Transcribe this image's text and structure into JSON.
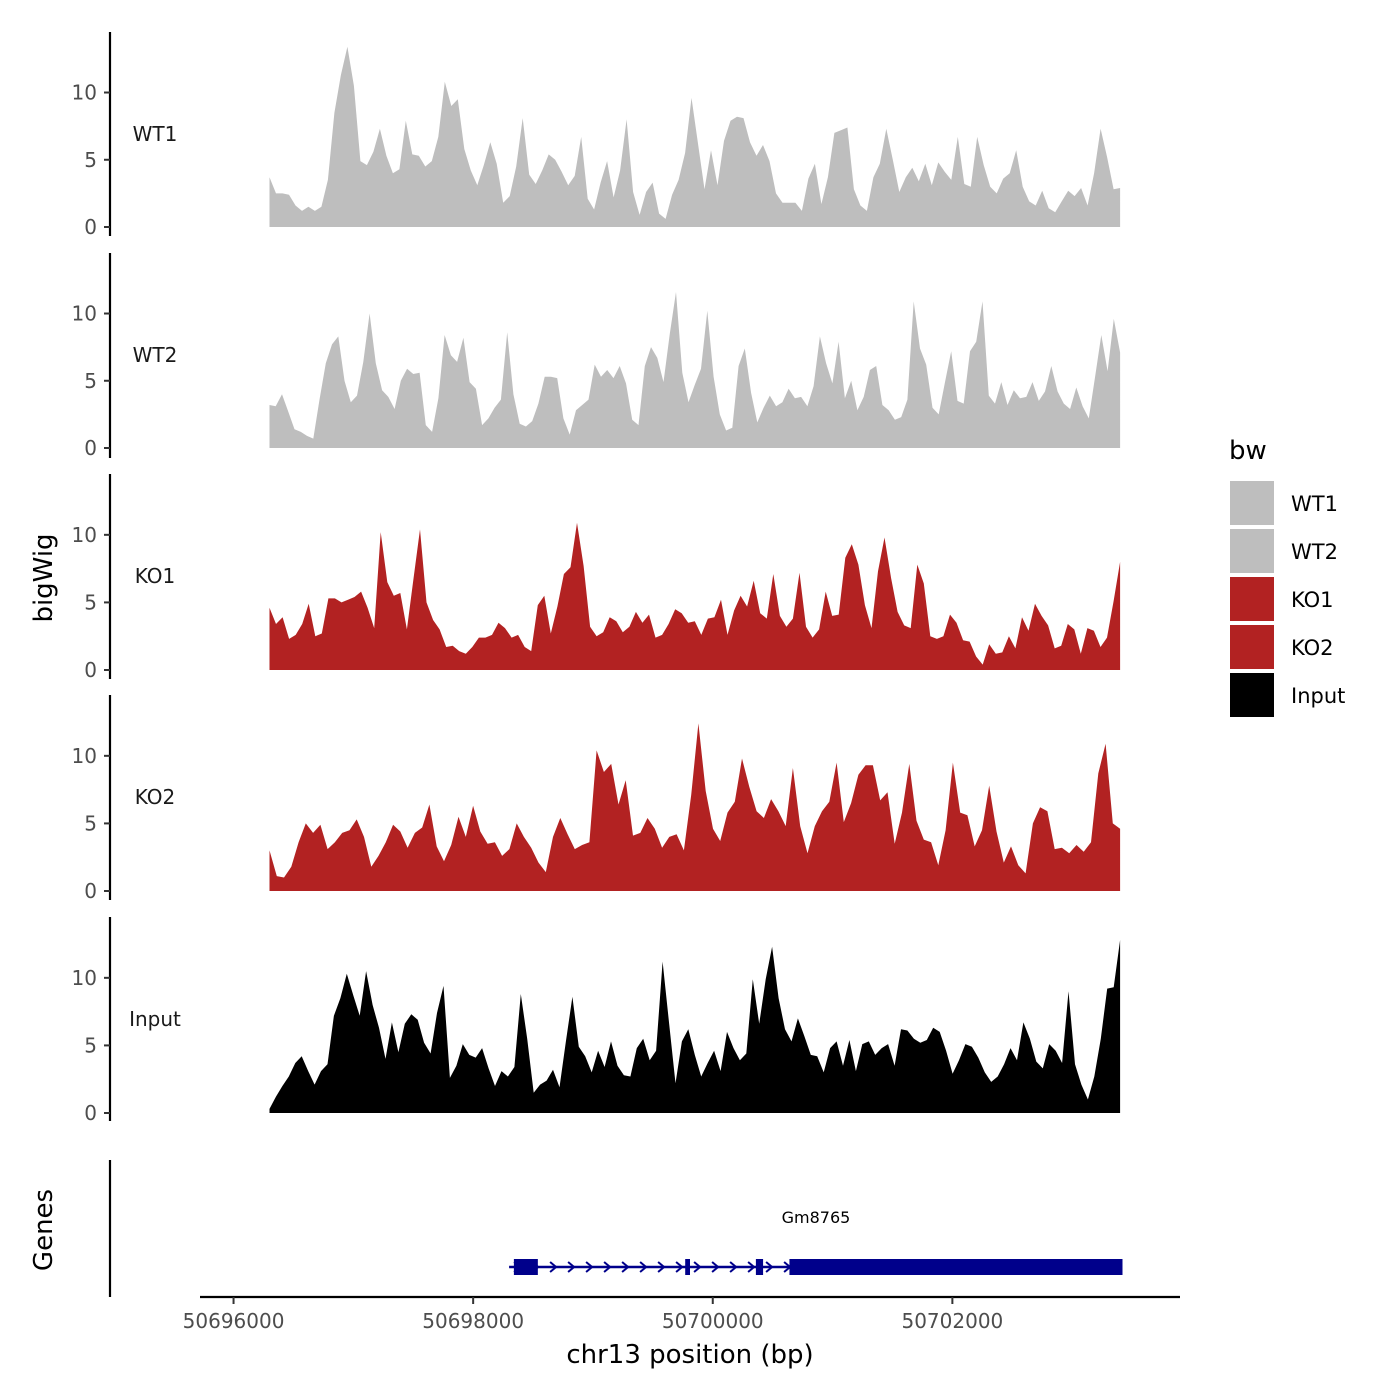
{
  "chart_data": {
    "type": "area",
    "ylabel": "bigWig",
    "xlabel": "chr13 position (bp)",
    "region": {
      "start": 50696300,
      "end": 50703400
    },
    "ylim": [
      0,
      14.5
    ],
    "yticks": [
      0,
      5,
      10
    ],
    "xlim": [
      50695720,
      50703900
    ],
    "xticks": [
      50696000,
      50698000,
      50700000,
      50702000
    ],
    "xtick_labels": [
      "50696000",
      "50698000",
      "50700000",
      "50702000"
    ],
    "colors": {
      "WT1": "#bebebe",
      "WT2": "#bebebe",
      "KO1": "#b22222",
      "KO2": "#b22222",
      "Input": "#000000"
    },
    "legend": {
      "title": "bw",
      "position": "right",
      "entries": [
        "WT1",
        "WT2",
        "KO1",
        "KO2",
        "Input"
      ]
    },
    "series": [
      {
        "name": "WT1",
        "values": [
          3.7,
          2.5,
          2.5,
          2.4,
          1.6,
          1.2,
          1.5,
          1.2,
          1.5,
          3.5,
          8.5,
          11.3,
          13.4,
          10.5,
          4.9,
          4.6,
          5.6,
          7.3,
          5.3,
          4.0,
          4.3,
          7.9,
          5.4,
          5.3,
          4.5,
          4.9,
          6.7,
          10.8,
          9.0,
          9.5,
          5.8,
          4.2,
          3.1,
          4.6,
          6.3,
          4.7,
          1.8,
          2.3,
          4.5,
          8.1,
          3.9,
          3.2,
          4.2,
          5.4,
          5.0,
          4.1,
          3.1,
          3.8,
          6.7,
          2.1,
          1.3,
          3.3,
          4.9,
          2.2,
          4.2,
          8.0,
          2.6,
          0.9,
          2.6,
          3.3,
          1.0,
          0.6,
          2.4,
          3.5,
          5.5,
          9.6,
          6.2,
          2.8,
          5.7,
          3.1,
          6.4,
          7.9,
          8.2,
          8.1,
          6.3,
          5.3,
          6.1,
          4.9,
          2.5,
          1.8,
          1.8,
          1.8,
          1.2,
          3.6,
          4.7,
          1.7,
          3.7,
          7.0,
          7.2,
          7.4,
          2.8,
          1.6,
          1.2,
          3.7,
          4.7,
          7.3,
          5.0,
          2.6,
          3.7,
          4.4,
          3.4,
          4.7,
          3.1,
          4.8,
          4.1,
          3.5,
          6.7,
          3.2,
          3.0,
          6.7,
          4.6,
          3.0,
          2.5,
          3.6,
          4.0,
          5.7,
          3.0,
          1.9,
          1.6,
          2.7,
          1.4,
          1.1,
          1.9,
          2.7,
          2.3,
          2.9,
          1.6,
          4.0,
          7.3,
          5.2,
          2.8,
          2.9
        ]
      },
      {
        "name": "WT2",
        "values": [
          3.2,
          3.1,
          4.0,
          2.7,
          1.4,
          1.2,
          0.9,
          0.7,
          3.6,
          6.3,
          7.7,
          8.3,
          5.0,
          3.4,
          3.9,
          6.4,
          10.0,
          6.3,
          4.3,
          3.8,
          2.9,
          5.0,
          5.9,
          5.5,
          5.6,
          1.7,
          1.2,
          3.7,
          8.4,
          6.9,
          6.4,
          8.2,
          4.9,
          4.4,
          1.7,
          2.2,
          3.0,
          3.6,
          8.6,
          4.0,
          1.8,
          1.6,
          2.0,
          3.3,
          5.3,
          5.3,
          5.2,
          2.2,
          1.0,
          2.8,
          3.2,
          3.6,
          6.2,
          5.3,
          5.8,
          5.2,
          6.1,
          4.8,
          2.1,
          1.7,
          6.1,
          7.5,
          6.7,
          4.9,
          8.5,
          11.6,
          5.6,
          3.4,
          4.7,
          5.9,
          10.2,
          5.3,
          2.5,
          1.3,
          1.5,
          6.1,
          7.4,
          4.1,
          1.9,
          3.0,
          3.9,
          3.1,
          3.4,
          4.4,
          3.7,
          3.8,
          3.1,
          4.6,
          8.3,
          6.3,
          4.8,
          7.9,
          3.7,
          5.0,
          2.8,
          3.8,
          5.8,
          6.1,
          3.2,
          2.8,
          2.1,
          2.3,
          3.6,
          10.9,
          7.4,
          6.2,
          3.0,
          2.5,
          4.9,
          7.2,
          3.5,
          3.3,
          7.2,
          7.9,
          10.9,
          3.9,
          3.3,
          4.9,
          3.2,
          4.3,
          3.7,
          3.8,
          4.9,
          3.5,
          4.2,
          6.1,
          4.2,
          3.3,
          2.9,
          4.5,
          3.1,
          2.2,
          5.3,
          8.4,
          5.7,
          9.6,
          7.1
        ]
      },
      {
        "name": "KO1",
        "values": [
          4.6,
          3.4,
          3.9,
          2.3,
          2.6,
          3.4,
          4.9,
          2.5,
          2.7,
          5.3,
          5.3,
          5.0,
          5.2,
          5.4,
          5.8,
          4.6,
          3.1,
          10.2,
          6.5,
          5.5,
          5.7,
          3.0,
          6.7,
          10.4,
          5.0,
          3.7,
          3.0,
          1.7,
          1.8,
          1.4,
          1.2,
          1.7,
          2.4,
          2.4,
          2.6,
          3.5,
          3.1,
          2.4,
          2.6,
          1.7,
          1.4,
          4.8,
          5.5,
          2.7,
          4.7,
          7.1,
          7.6,
          10.9,
          7.7,
          3.2,
          2.5,
          2.8,
          3.9,
          3.6,
          2.8,
          3.2,
          4.3,
          3.5,
          4.1,
          2.4,
          2.6,
          3.4,
          4.5,
          4.2,
          3.5,
          3.6,
          2.6,
          3.8,
          3.9,
          5.2,
          2.6,
          4.4,
          5.5,
          4.7,
          6.6,
          4.2,
          3.8,
          7.1,
          4.0,
          3.2,
          3.8,
          7.2,
          3.2,
          2.4,
          3.0,
          5.8,
          4.0,
          4.1,
          8.3,
          9.3,
          7.8,
          4.8,
          3.1,
          7.3,
          9.8,
          6.8,
          4.3,
          3.3,
          3.1,
          7.8,
          6.4,
          2.5,
          2.3,
          2.5,
          4.1,
          3.5,
          2.2,
          2.1,
          1.0,
          0.4,
          1.9,
          1.2,
          1.3,
          2.5,
          1.6,
          3.9,
          2.9,
          4.9,
          4.0,
          3.3,
          1.6,
          1.8,
          3.4,
          3.0,
          1.2,
          3.1,
          2.9,
          1.7,
          2.4,
          5.1,
          8.0
        ]
      },
      {
        "name": "KO2",
        "values": [
          3.0,
          1.1,
          1.0,
          1.8,
          3.6,
          5.0,
          4.3,
          4.9,
          3.1,
          3.6,
          4.3,
          4.5,
          5.3,
          4.0,
          1.8,
          2.6,
          3.6,
          4.9,
          4.4,
          3.2,
          4.3,
          4.7,
          6.4,
          3.3,
          2.2,
          3.4,
          5.5,
          4.0,
          6.3,
          4.4,
          3.5,
          3.6,
          2.6,
          3.1,
          5.0,
          4.0,
          3.2,
          2.1,
          1.4,
          4.0,
          5.4,
          4.2,
          3.1,
          3.4,
          3.6,
          10.4,
          8.8,
          9.4,
          6.4,
          8.2,
          4.1,
          4.3,
          5.4,
          4.6,
          3.2,
          4.0,
          4.2,
          3.0,
          7.1,
          12.4,
          7.4,
          4.6,
          3.7,
          5.8,
          6.6,
          9.8,
          7.7,
          5.9,
          5.4,
          6.8,
          5.9,
          4.8,
          9.1,
          4.8,
          2.8,
          4.8,
          5.9,
          6.6,
          9.5,
          5.1,
          6.5,
          8.6,
          9.3,
          9.3,
          6.7,
          7.3,
          3.5,
          5.8,
          9.4,
          5.2,
          3.8,
          3.6,
          1.9,
          4.5,
          9.5,
          5.8,
          5.6,
          3.3,
          4.5,
          7.8,
          4.4,
          2.1,
          3.3,
          1.9,
          1.3,
          5.0,
          6.2,
          5.9,
          3.1,
          3.2,
          2.8,
          3.4,
          2.9,
          3.6,
          8.7,
          10.9,
          5.0,
          4.6
        ]
      },
      {
        "name": "Input",
        "values": [
          0.3,
          1.2,
          2.0,
          2.7,
          3.7,
          4.2,
          3.1,
          2.1,
          3.1,
          3.6,
          7.2,
          8.5,
          10.3,
          8.7,
          7.2,
          10.5,
          8.0,
          6.3,
          4.0,
          6.7,
          4.5,
          6.6,
          7.3,
          6.9,
          5.2,
          4.4,
          7.4,
          9.4,
          2.6,
          3.5,
          5.1,
          4.3,
          4.1,
          4.8,
          3.3,
          2.0,
          3.1,
          2.7,
          3.4,
          8.8,
          5.5,
          1.5,
          2.1,
          2.4,
          3.2,
          1.9,
          5.3,
          8.6,
          4.9,
          4.2,
          3.0,
          4.6,
          3.4,
          5.3,
          3.5,
          2.8,
          2.7,
          4.8,
          5.5,
          3.9,
          4.6,
          11.2,
          6.7,
          2.2,
          5.3,
          6.2,
          4.3,
          2.7,
          3.7,
          4.6,
          3.1,
          6.0,
          4.8,
          3.9,
          4.4,
          9.9,
          6.6,
          9.9,
          12.3,
          8.5,
          6.2,
          5.3,
          7.0,
          5.7,
          4.3,
          4.2,
          3.0,
          4.8,
          5.3,
          3.5,
          5.4,
          3.1,
          5.1,
          5.3,
          4.3,
          4.8,
          5.1,
          3.5,
          6.2,
          6.1,
          5.5,
          5.2,
          5.4,
          6.3,
          6.0,
          4.6,
          2.9,
          3.9,
          5.1,
          4.9,
          4.1,
          3.0,
          2.3,
          2.7,
          3.6,
          4.8,
          3.9,
          6.7,
          5.5,
          3.8,
          3.3,
          5.1,
          4.6,
          3.7,
          9.0,
          3.6,
          2.1,
          1.0,
          2.7,
          5.5,
          9.2,
          9.3,
          12.8
        ]
      }
    ],
    "genes_track": {
      "ylabel": "Genes",
      "genes": [
        {
          "name": "Gm8765",
          "start": 50698300,
          "end": 50703420,
          "strand": "+",
          "exons": [
            [
              50698340,
              50698540
            ],
            [
              50699770,
              50699810
            ],
            [
              50700360,
              50700420
            ],
            [
              50700640,
              50703420
            ]
          ]
        }
      ]
    }
  }
}
